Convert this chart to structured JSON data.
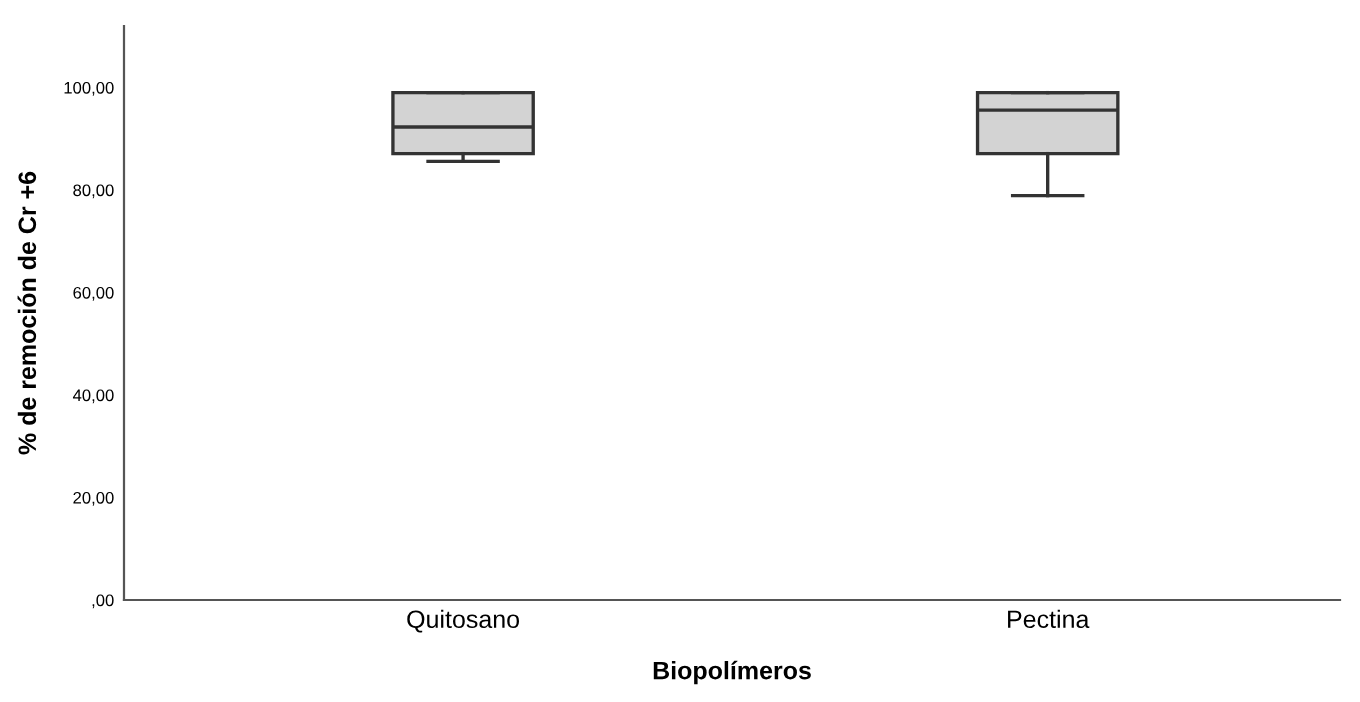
{
  "chart_data": {
    "type": "box",
    "xlabel": "Biopolímeros",
    "ylabel": "% de remoción de Cr +6",
    "categories": [
      "Quitosano",
      "Pectina"
    ],
    "boxes": [
      {
        "low": 85.6,
        "q1": 87.1,
        "median": 92.3,
        "q3": 99.0,
        "high": 99.0
      },
      {
        "low": 78.9,
        "q1": 87.1,
        "median": 95.6,
        "q3": 99.0,
        "high": 99.0
      }
    ],
    "color": "#d3d3d3",
    "ylim": [
      0,
      112
    ],
    "yticks": [
      {
        "value": 0,
        "label": ",00"
      },
      {
        "value": 20,
        "label": "20,00"
      },
      {
        "value": 40,
        "label": "40,00"
      },
      {
        "value": 60,
        "label": "60,00"
      },
      {
        "value": 80,
        "label": "80,00"
      },
      {
        "value": 100,
        "label": "100,00"
      }
    ],
    "grid": false
  }
}
